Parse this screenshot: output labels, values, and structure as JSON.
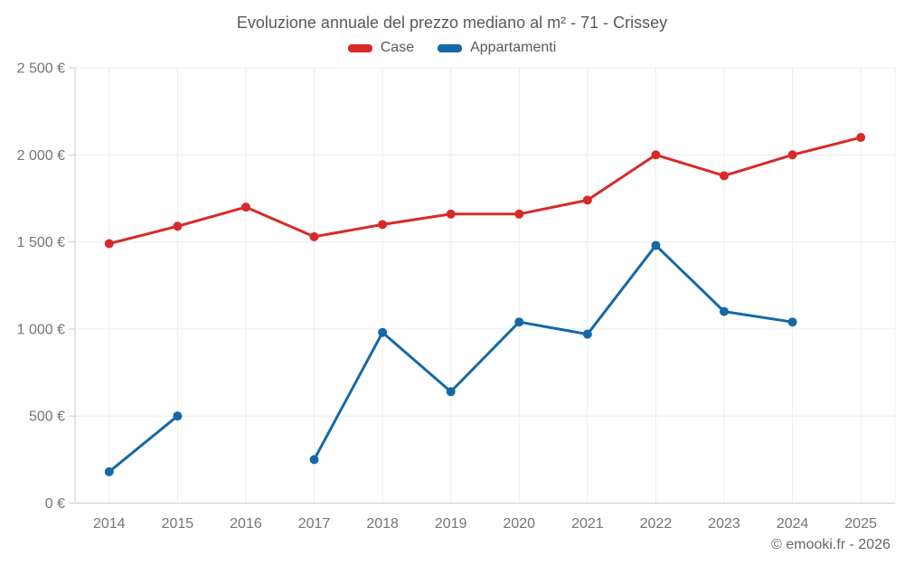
{
  "title": "Evoluzione annuale del prezzo mediano al m² - 71 - Crissey",
  "footer": "© emooki.fr - 2026",
  "chart_data": {
    "type": "line",
    "title": "Evoluzione annuale del prezzo mediano al m² - 71 - Crissey",
    "categories": [
      2014,
      2015,
      2016,
      2017,
      2018,
      2019,
      2020,
      2021,
      2022,
      2023,
      2024,
      2025
    ],
    "series": [
      {
        "name": "Case",
        "color": "#d62b28",
        "values": [
          1490,
          1590,
          1700,
          1530,
          1600,
          1660,
          1660,
          1740,
          2000,
          1880,
          2000,
          2100
        ]
      },
      {
        "name": "Appartamenti",
        "color": "#1668a6",
        "values": [
          180,
          500,
          null,
          250,
          980,
          640,
          1040,
          970,
          1480,
          1100,
          1040,
          null
        ]
      }
    ],
    "xlabel": "",
    "ylabel": "",
    "ylim": [
      0,
      2500
    ],
    "ytick_step": 500,
    "y_suffix": " €",
    "grid": true,
    "legend_position": "top"
  }
}
